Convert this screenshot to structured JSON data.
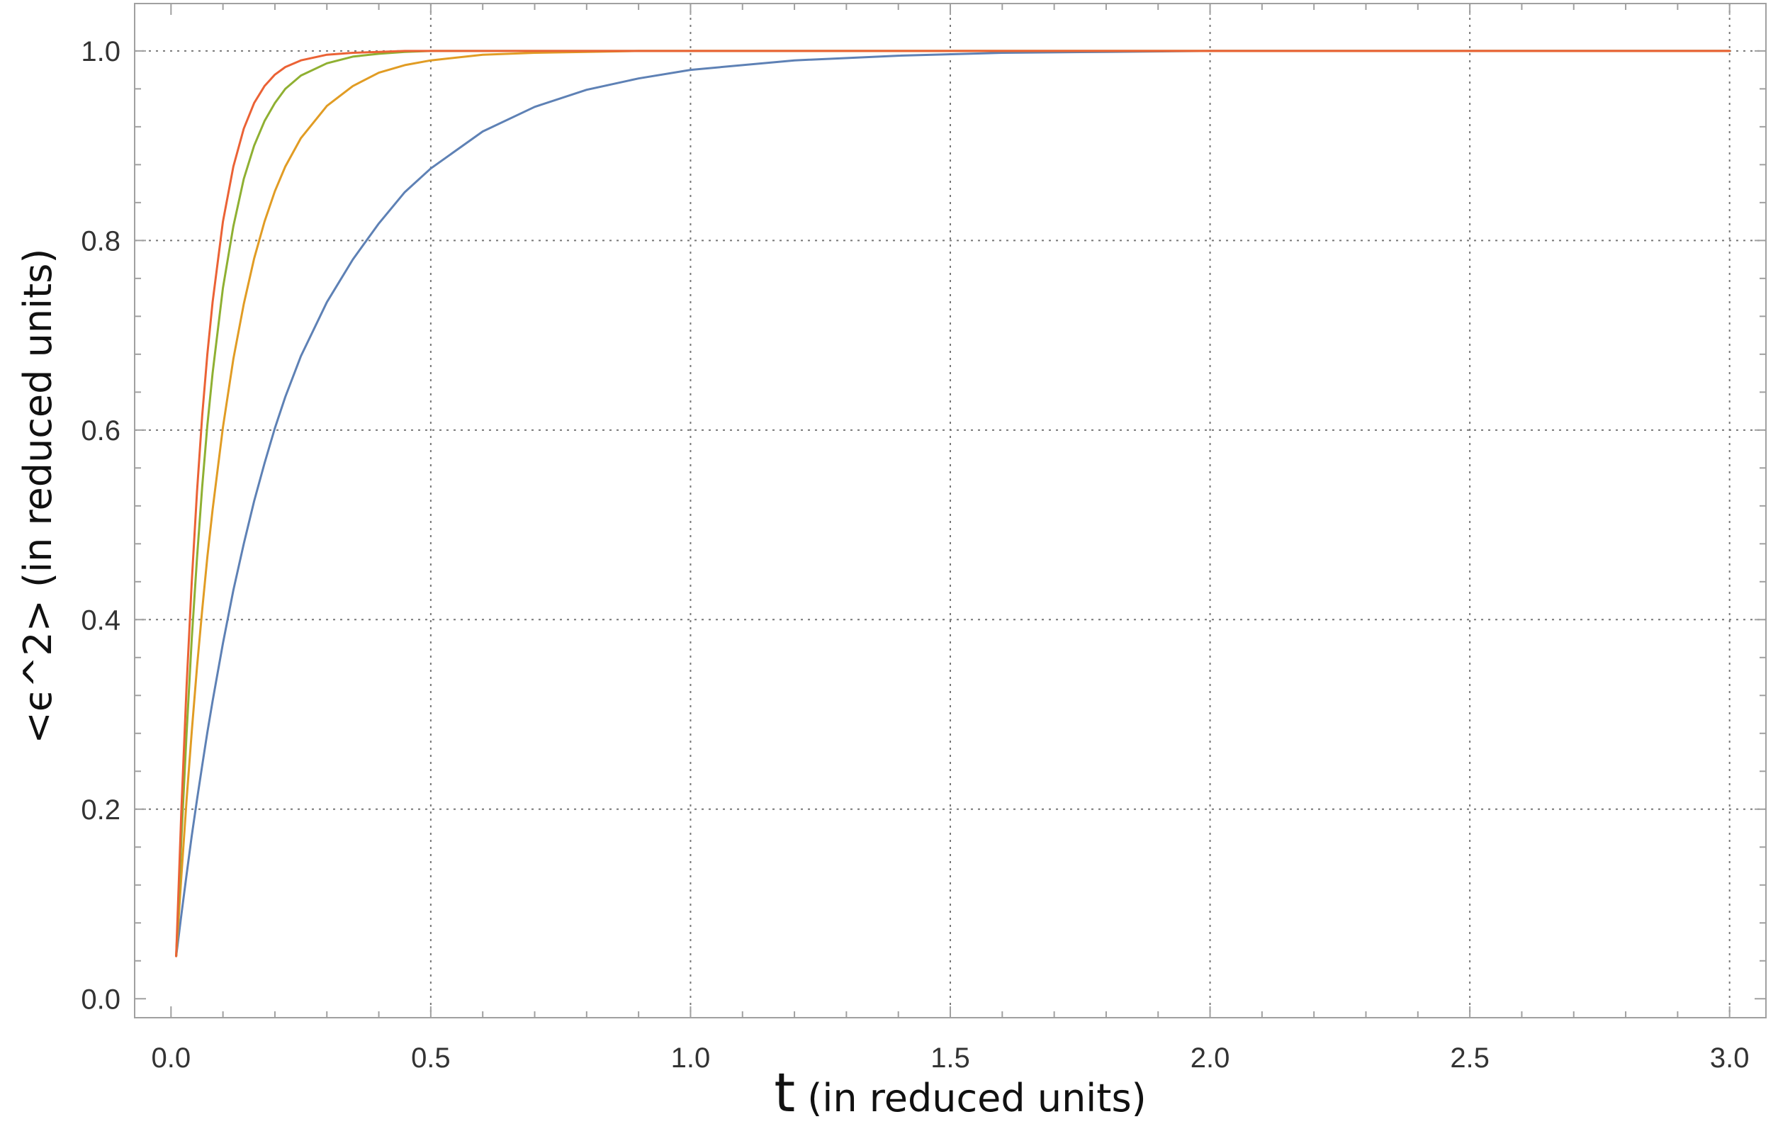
{
  "chart_data": {
    "type": "line",
    "title": "",
    "xlabel_symbol": "t",
    "xlabel_rest": " (in reduced units)",
    "ylabel": "<ϵ^2>   (in reduced units)",
    "xlim": [
      -0.07,
      3.07
    ],
    "ylim": [
      -0.02,
      1.05
    ],
    "xticks": [
      0.0,
      0.5,
      1.0,
      1.5,
      2.0,
      2.5,
      3.0
    ],
    "xtick_labels": [
      "0.0",
      "0.5",
      "1.0",
      "1.5",
      "2.0",
      "2.5",
      "3.0"
    ],
    "yticks": [
      0.0,
      0.2,
      0.4,
      0.6,
      0.8,
      1.0
    ],
    "ytick_labels": [
      "0.0",
      "0.2",
      "0.4",
      "0.6",
      "0.8",
      "1.0"
    ],
    "grid": "dotted",
    "x": [
      0.01,
      0.02,
      0.03,
      0.04,
      0.05,
      0.06,
      0.07,
      0.08,
      0.1,
      0.12,
      0.14,
      0.16,
      0.18,
      0.2,
      0.22,
      0.25,
      0.3,
      0.35,
      0.4,
      0.45,
      0.5,
      0.6,
      0.7,
      0.8,
      0.9,
      1.0,
      1.2,
      1.4,
      1.6,
      1.8,
      2.0,
      2.5,
      3.0
    ],
    "series": [
      {
        "color": "#5e81b5",
        "values": [
          0.045,
          0.089,
          0.131,
          0.172,
          0.21,
          0.246,
          0.281,
          0.314,
          0.375,
          0.431,
          0.48,
          0.525,
          0.565,
          0.602,
          0.635,
          0.678,
          0.735,
          0.78,
          0.818,
          0.851,
          0.876,
          0.915,
          0.941,
          0.959,
          0.971,
          0.98,
          0.99,
          0.995,
          0.998,
          0.999,
          1.0,
          1.0,
          1.0
        ]
      },
      {
        "color": "#e19c24",
        "values": [
          0.045,
          0.13,
          0.21,
          0.282,
          0.35,
          0.41,
          0.466,
          0.516,
          0.603,
          0.675,
          0.733,
          0.781,
          0.82,
          0.852,
          0.878,
          0.908,
          0.942,
          0.963,
          0.977,
          0.985,
          0.99,
          0.996,
          0.998,
          0.999,
          1.0,
          1.0,
          1.0,
          1.0,
          1.0,
          1.0,
          1.0,
          1.0,
          1.0
        ]
      },
      {
        "color": "#8fb032",
        "values": [
          0.045,
          0.17,
          0.28,
          0.38,
          0.465,
          0.54,
          0.605,
          0.66,
          0.75,
          0.815,
          0.865,
          0.9,
          0.926,
          0.945,
          0.96,
          0.974,
          0.987,
          0.994,
          0.997,
          0.999,
          1.0,
          1.0,
          1.0,
          1.0,
          1.0,
          1.0,
          1.0,
          1.0,
          1.0,
          1.0,
          1.0,
          1.0,
          1.0
        ]
      },
      {
        "color": "#eb6235",
        "values": [
          0.045,
          0.2,
          0.33,
          0.44,
          0.535,
          0.615,
          0.68,
          0.735,
          0.82,
          0.878,
          0.918,
          0.945,
          0.963,
          0.975,
          0.983,
          0.99,
          0.996,
          0.998,
          0.999,
          1.0,
          1.0,
          1.0,
          1.0,
          1.0,
          1.0,
          1.0,
          1.0,
          1.0,
          1.0,
          1.0,
          1.0,
          1.0,
          1.0
        ]
      }
    ]
  }
}
